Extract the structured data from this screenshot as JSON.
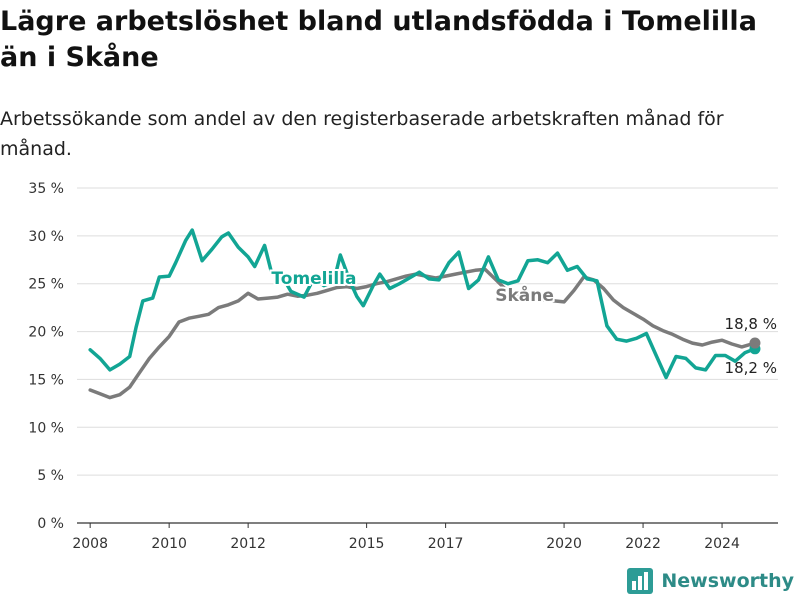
{
  "header": {
    "title": "Lägre arbetslöshet bland utlandsfödda i Tomelilla än i Skåne",
    "subtitle": "Arbetssökande som andel av den registerbaserade arbetskraften månad för månad."
  },
  "brand": {
    "name": "Newsworthy",
    "icon": "bar-chart-logo-icon",
    "color": "#2d9c96"
  },
  "colors": {
    "tomelilla": "#12a594",
    "skane": "#7b7b7b",
    "grid": "#dddddd",
    "axis": "#333333"
  },
  "chart_data": {
    "type": "line",
    "x_type": "date",
    "ylim": [
      0,
      35
    ],
    "y_ticks": [
      0,
      5,
      10,
      15,
      20,
      25,
      30,
      35
    ],
    "y_tick_labels": [
      "0 %",
      "5 %",
      "10 %",
      "15 %",
      "20 %",
      "25 %",
      "30 %",
      "35 %"
    ],
    "x_ticks": [
      "2008",
      "2010",
      "2012",
      "2015",
      "2017",
      "2020",
      "2022",
      "2024"
    ],
    "x_range": [
      "2007-09",
      "2025-06"
    ],
    "grid": true,
    "series": [
      {
        "name": "Tomelilla",
        "color": "#12a594",
        "label": "Tomelilla",
        "end_label": "18,2 %",
        "points": [
          [
            "2008-01",
            18.1
          ],
          [
            "2008-04",
            17.2
          ],
          [
            "2008-07",
            16.0
          ],
          [
            "2008-10",
            16.6
          ],
          [
            "2009-01",
            17.4
          ],
          [
            "2009-03",
            20.5
          ],
          [
            "2009-05",
            23.2
          ],
          [
            "2009-08",
            23.5
          ],
          [
            "2009-10",
            25.7
          ],
          [
            "2010-01",
            25.8
          ],
          [
            "2010-03",
            27.2
          ],
          [
            "2010-06",
            29.5
          ],
          [
            "2010-08",
            30.6
          ],
          [
            "2010-11",
            27.4
          ],
          [
            "2011-02",
            28.6
          ],
          [
            "2011-05",
            29.9
          ],
          [
            "2011-07",
            30.3
          ],
          [
            "2011-10",
            28.8
          ],
          [
            "2012-01",
            27.8
          ],
          [
            "2012-03",
            26.8
          ],
          [
            "2012-06",
            29.0
          ],
          [
            "2012-08",
            26.3
          ],
          [
            "2012-11",
            26.0
          ],
          [
            "2013-02",
            24.2
          ],
          [
            "2013-06",
            23.6
          ],
          [
            "2013-09",
            25.6
          ],
          [
            "2013-12",
            24.8
          ],
          [
            "2014-03",
            25.2
          ],
          [
            "2014-05",
            28.0
          ],
          [
            "2014-08",
            25.2
          ],
          [
            "2014-10",
            23.7
          ],
          [
            "2014-12",
            22.7
          ],
          [
            "2015-03",
            24.8
          ],
          [
            "2015-05",
            26.0
          ],
          [
            "2015-08",
            24.5
          ],
          [
            "2015-11",
            25.0
          ],
          [
            "2016-02",
            25.6
          ],
          [
            "2016-05",
            26.2
          ],
          [
            "2016-08",
            25.5
          ],
          [
            "2016-11",
            25.4
          ],
          [
            "2017-02",
            27.2
          ],
          [
            "2017-05",
            28.3
          ],
          [
            "2017-08",
            24.5
          ],
          [
            "2017-11",
            25.4
          ],
          [
            "2018-02",
            27.8
          ],
          [
            "2018-05",
            25.4
          ],
          [
            "2018-08",
            25.0
          ],
          [
            "2018-11",
            25.3
          ],
          [
            "2019-02",
            27.4
          ],
          [
            "2019-05",
            27.5
          ],
          [
            "2019-08",
            27.2
          ],
          [
            "2019-11",
            28.2
          ],
          [
            "2020-02",
            26.4
          ],
          [
            "2020-05",
            26.8
          ],
          [
            "2020-08",
            25.5
          ],
          [
            "2020-11",
            25.3
          ],
          [
            "2021-02",
            20.6
          ],
          [
            "2021-05",
            19.2
          ],
          [
            "2021-08",
            19.0
          ],
          [
            "2021-11",
            19.3
          ],
          [
            "2022-02",
            19.8
          ],
          [
            "2022-05",
            17.5
          ],
          [
            "2022-08",
            15.2
          ],
          [
            "2022-11",
            17.4
          ],
          [
            "2023-02",
            17.2
          ],
          [
            "2023-05",
            16.2
          ],
          [
            "2023-08",
            16.0
          ],
          [
            "2023-11",
            17.5
          ],
          [
            "2024-02",
            17.5
          ],
          [
            "2024-05",
            16.9
          ],
          [
            "2024-08",
            17.8
          ],
          [
            "2024-11",
            18.2
          ]
        ]
      },
      {
        "name": "Skåne",
        "color": "#7b7b7b",
        "label": "Skåne",
        "end_label": "18,8 %",
        "points": [
          [
            "2008-01",
            13.9
          ],
          [
            "2008-04",
            13.5
          ],
          [
            "2008-07",
            13.1
          ],
          [
            "2008-10",
            13.4
          ],
          [
            "2009-01",
            14.2
          ],
          [
            "2009-04",
            15.7
          ],
          [
            "2009-07",
            17.2
          ],
          [
            "2009-10",
            18.4
          ],
          [
            "2010-01",
            19.5
          ],
          [
            "2010-04",
            21.0
          ],
          [
            "2010-07",
            21.4
          ],
          [
            "2010-10",
            21.6
          ],
          [
            "2011-01",
            21.8
          ],
          [
            "2011-04",
            22.5
          ],
          [
            "2011-07",
            22.8
          ],
          [
            "2011-10",
            23.2
          ],
          [
            "2012-01",
            24.0
          ],
          [
            "2012-04",
            23.4
          ],
          [
            "2012-07",
            23.5
          ],
          [
            "2012-10",
            23.6
          ],
          [
            "2013-01",
            23.9
          ],
          [
            "2013-04",
            23.7
          ],
          [
            "2013-07",
            23.8
          ],
          [
            "2013-10",
            24.0
          ],
          [
            "2014-01",
            24.3
          ],
          [
            "2014-04",
            24.6
          ],
          [
            "2014-07",
            24.7
          ],
          [
            "2014-10",
            24.5
          ],
          [
            "2015-01",
            24.7
          ],
          [
            "2015-04",
            25.0
          ],
          [
            "2015-07",
            25.2
          ],
          [
            "2015-10",
            25.5
          ],
          [
            "2016-01",
            25.8
          ],
          [
            "2016-04",
            26.0
          ],
          [
            "2016-07",
            25.8
          ],
          [
            "2016-10",
            25.6
          ],
          [
            "2017-01",
            25.8
          ],
          [
            "2017-04",
            26.0
          ],
          [
            "2017-07",
            26.2
          ],
          [
            "2017-10",
            26.4
          ],
          [
            "2018-01",
            26.5
          ],
          [
            "2018-04",
            25.5
          ],
          [
            "2018-07",
            24.5
          ],
          [
            "2018-10",
            24.0
          ],
          [
            "2019-01",
            23.8
          ],
          [
            "2019-04",
            23.5
          ],
          [
            "2019-07",
            23.3
          ],
          [
            "2019-10",
            23.2
          ],
          [
            "2020-01",
            23.1
          ],
          [
            "2020-04",
            24.3
          ],
          [
            "2020-07",
            25.7
          ],
          [
            "2020-10",
            25.4
          ],
          [
            "2021-01",
            24.5
          ],
          [
            "2021-04",
            23.3
          ],
          [
            "2021-07",
            22.5
          ],
          [
            "2021-10",
            21.9
          ],
          [
            "2022-01",
            21.3
          ],
          [
            "2022-04",
            20.6
          ],
          [
            "2022-07",
            20.1
          ],
          [
            "2022-10",
            19.7
          ],
          [
            "2023-01",
            19.2
          ],
          [
            "2023-04",
            18.8
          ],
          [
            "2023-07",
            18.6
          ],
          [
            "2023-10",
            18.9
          ],
          [
            "2024-01",
            19.1
          ],
          [
            "2024-04",
            18.7
          ],
          [
            "2024-07",
            18.4
          ],
          [
            "2024-11",
            18.8
          ]
        ]
      }
    ]
  }
}
